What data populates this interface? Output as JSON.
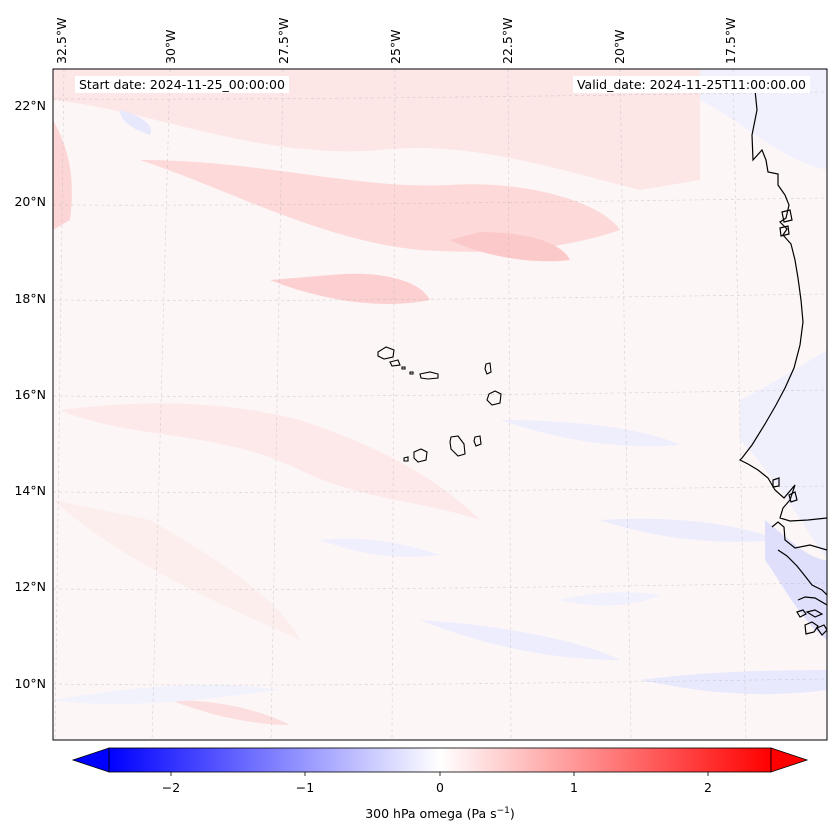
{
  "header": {
    "start_date": "Start date: 2024-11-25_00:00:00",
    "valid_date": "Valid_date: 2024-11-25T11:00:00.00"
  },
  "map": {
    "lon_labels": [
      "32.5°W",
      "30°W",
      "27.5°W",
      "25°W",
      "22.5°W",
      "20°W",
      "17.5°W"
    ],
    "lat_labels": [
      "22°N",
      "20°N",
      "18°N",
      "16°N",
      "14°N",
      "12°N",
      "10°N"
    ],
    "extent": {
      "lon_min": -33.0,
      "lon_max": -15.8,
      "lat_min": 8.8,
      "lat_max": 22.8
    },
    "features": [
      "Cape Verde islands",
      "West African coastline (Mauritania, Senegal, Gambia, Guinea-Bissau)"
    ]
  },
  "colorbar": {
    "label_prefix": "300 hPa omega (Pa s",
    "label_exp": "−1",
    "label_suffix": ")",
    "ticks": [
      "−2",
      "−1",
      "0",
      "1",
      "2"
    ],
    "tick_values": [
      -2,
      -1,
      0,
      1,
      2
    ],
    "range": [
      -2.5,
      2.5
    ],
    "colormap": "bwr",
    "extend": "both"
  },
  "colors": {
    "positive": "#ff0000",
    "negative": "#0000ff",
    "zero": "#ffffff"
  }
}
